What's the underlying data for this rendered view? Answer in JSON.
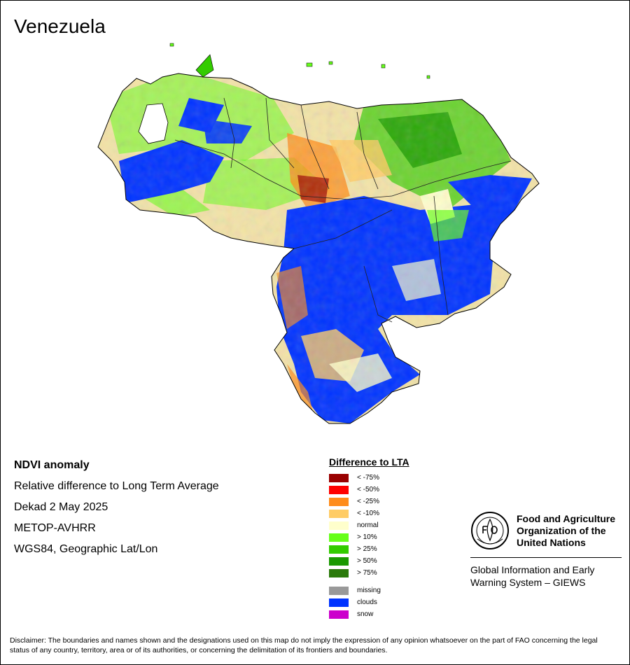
{
  "title": "Venezuela",
  "info": {
    "heading": "NDVI anomaly",
    "lines": [
      "Relative difference to Long Term Average",
      "Dekad 2 May 2025",
      "METOP-AVHRR",
      "WGS84, Geographic Lat/Lon"
    ]
  },
  "legend": {
    "title": "Difference to LTA",
    "classes": [
      {
        "label": "< -75%",
        "color": "#990000"
      },
      {
        "label": "< -50%",
        "color": "#ff0000"
      },
      {
        "label": "< -25%",
        "color": "#ff8c1a"
      },
      {
        "label": "< -10%",
        "color": "#ffcc66"
      },
      {
        "label": "normal",
        "color": "#ffffcc"
      },
      {
        "label": "> 10%",
        "color": "#66ff1a"
      },
      {
        "label": "> 25%",
        "color": "#33cc00"
      },
      {
        "label": "> 50%",
        "color": "#1a9900"
      },
      {
        "label": "> 75%",
        "color": "#2b7a0b"
      }
    ],
    "extra": [
      {
        "label": "missing",
        "color": "#999999"
      },
      {
        "label": "clouds",
        "color": "#0033ff"
      },
      {
        "label": "snow",
        "color": "#cc00cc"
      }
    ]
  },
  "fao": {
    "name_lines": [
      "Food and Agriculture",
      "Organization of the",
      "United Nations"
    ],
    "giews_lines": [
      "Global Information and Early",
      "Warning System – GIEWS"
    ]
  },
  "disclaimer": "Disclaimer: The boundaries and names shown and the designations used on this map do not imply the expression of any opinion whatsoever on the part of FAO concerning the legal status of any country, territory, area or of its authorities, or concerning the delimitation of its frontiers and boundaries."
}
